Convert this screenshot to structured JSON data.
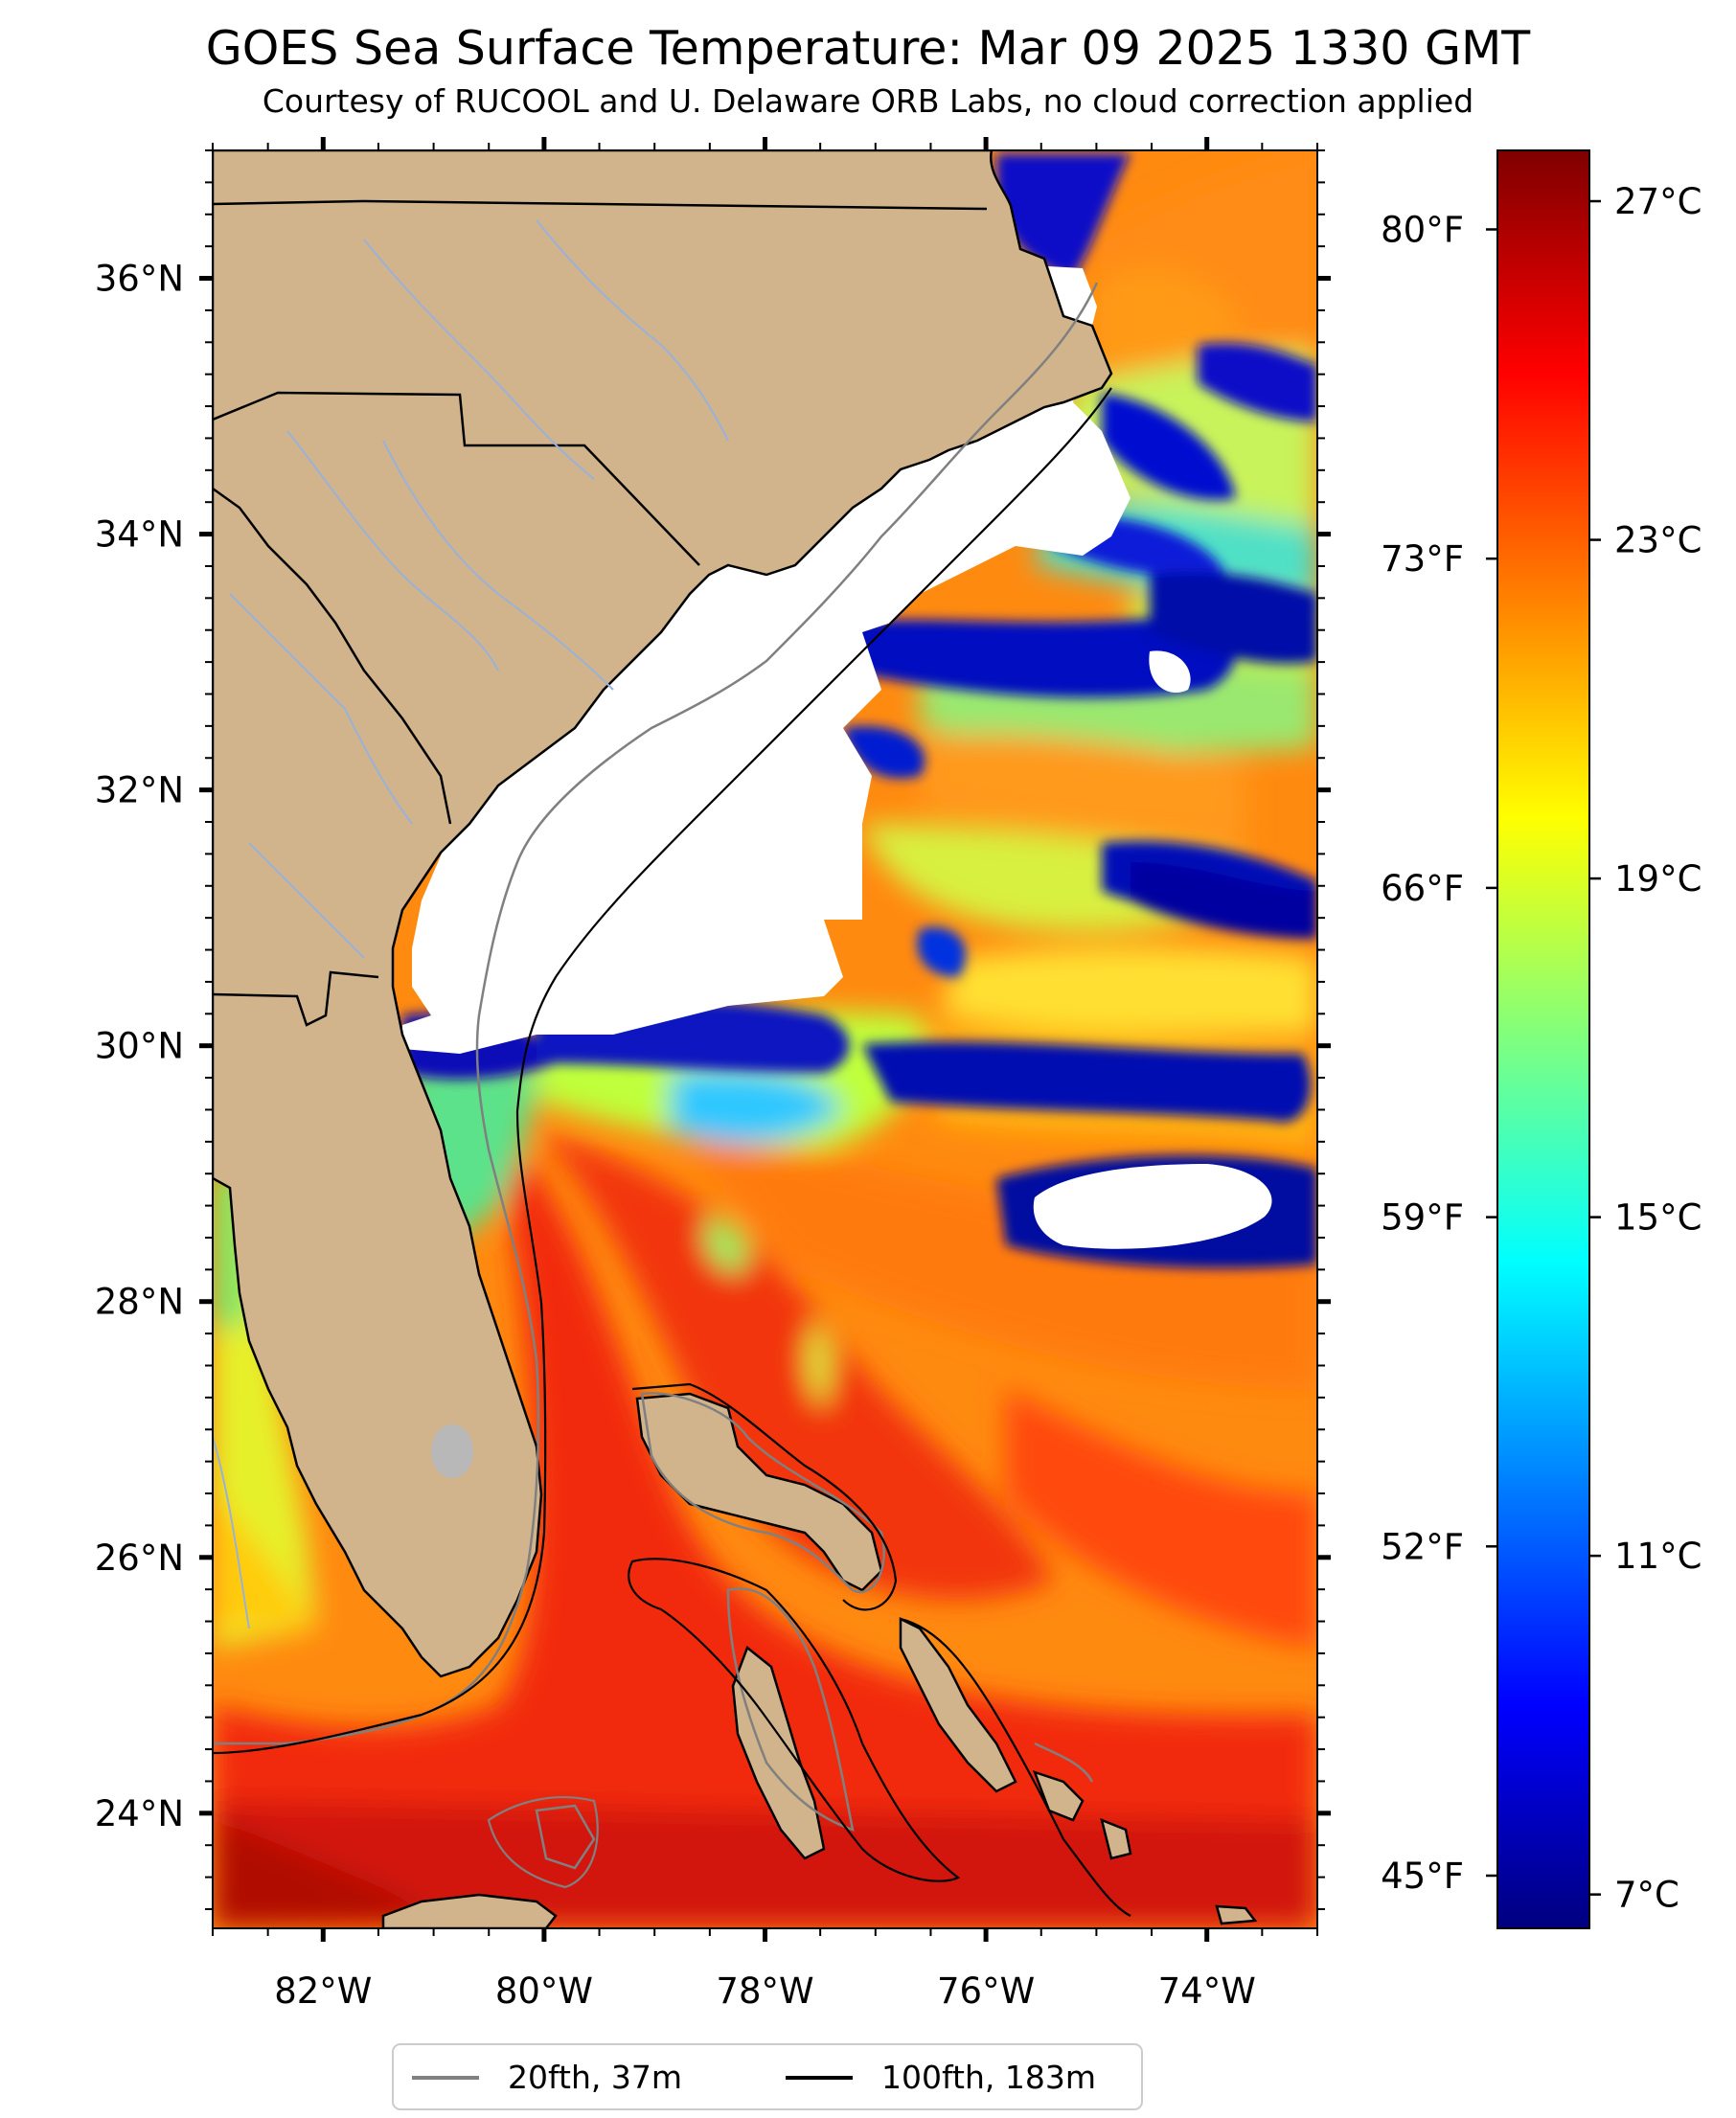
{
  "title": "GOES Sea Surface Temperature: Mar 09 2025 1330 GMT",
  "subtitle": "Courtesy of RUCOOL and U. Delaware ORB Labs, no cloud correction applied",
  "colors": {
    "land": "#d2b48c",
    "cloud_mask": "#ffffff",
    "coastline": "#000000",
    "contour_20fth": "#808080",
    "contour_100fth": "#000000",
    "rivers": "#9ab1d8",
    "colormap": [
      "#00007f",
      "#0000ff",
      "#007fff",
      "#00ffff",
      "#7fff7f",
      "#ffff00",
      "#ff7f00",
      "#ff0000",
      "#7f0000"
    ]
  },
  "chart_data": {
    "type": "heatmap",
    "variable": "sea surface temperature",
    "map_extent": {
      "lon": [
        -83,
        -73
      ],
      "lat": [
        23.1,
        37
      ]
    },
    "lat_ticks": [
      {
        "value": 36,
        "label": "36°N"
      },
      {
        "value": 34,
        "label": "34°N"
      },
      {
        "value": 32,
        "label": "32°N"
      },
      {
        "value": 30,
        "label": "30°N"
      },
      {
        "value": 28,
        "label": "28°N"
      },
      {
        "value": 26,
        "label": "26°N"
      },
      {
        "value": 24,
        "label": "24°N"
      }
    ],
    "lon_ticks": [
      {
        "value": -82,
        "label": "82°W"
      },
      {
        "value": -80,
        "label": "80°W"
      },
      {
        "value": -78,
        "label": "78°W"
      },
      {
        "value": -76,
        "label": "76°W"
      },
      {
        "value": -74,
        "label": "74°W"
      }
    ],
    "fahrenheit_ticks": [
      {
        "value": 80,
        "label": "80°F"
      },
      {
        "value": 73,
        "label": "73°F"
      },
      {
        "value": 66,
        "label": "66°F"
      },
      {
        "value": 59,
        "label": "59°F"
      },
      {
        "value": 52,
        "label": "52°F"
      },
      {
        "value": 45,
        "label": "45°F"
      }
    ],
    "colorbar": {
      "range_c": [
        6.6,
        27.6
      ],
      "ticks": [
        {
          "value": 27,
          "label": "27°C"
        },
        {
          "value": 23,
          "label": "23°C"
        },
        {
          "value": 19,
          "label": "19°C"
        },
        {
          "value": 15,
          "label": "15°C"
        },
        {
          "value": 11,
          "label": "11°C"
        },
        {
          "value": 7,
          "label": "7°C"
        }
      ]
    },
    "legend": {
      "position": "bottom",
      "entries": [
        {
          "label": "20fth, 37m",
          "color": "#808080"
        },
        {
          "label": "100fth, 183m",
          "color": "#000000"
        }
      ]
    }
  }
}
